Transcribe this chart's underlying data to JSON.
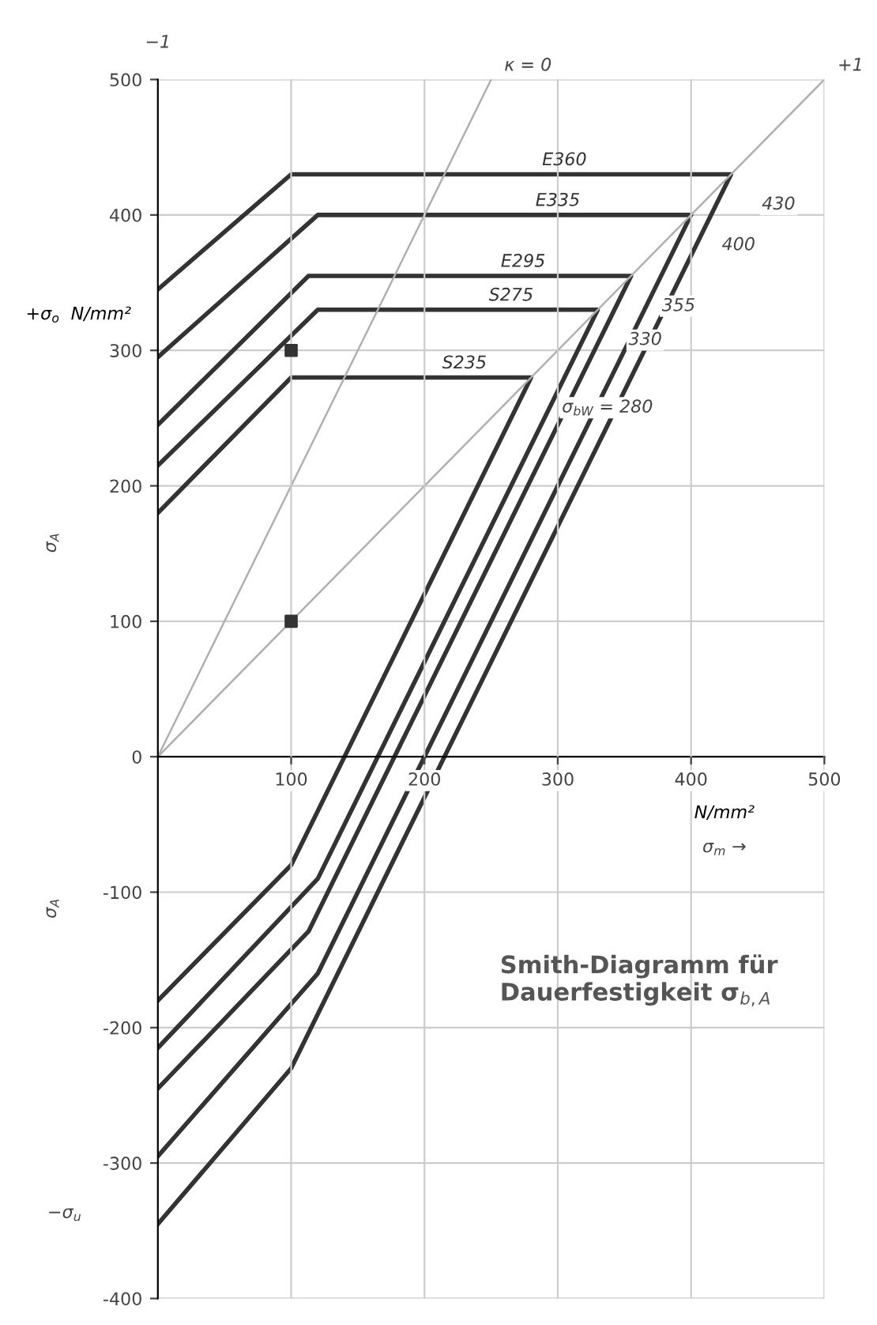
{
  "chart_data": {
    "type": "line",
    "title": "Smith-Diagramm für Dauerfestigkeit σ$_{b,A}$",
    "xlabel": "N/mm²",
    "ylabel": "+σ$_{o}$  N/mm²",
    "xlim": [
      0,
      500
    ],
    "xticks": [
      100,
      200,
      300,
      400,
      500
    ],
    "ylim": [
      -400,
      500
    ],
    "yticks": [
      -400,
      -300,
      -200,
      -100,
      0,
      100,
      200,
      300,
      400,
      500
    ],
    "grid": true,
    "legend": false,
    "line_style": "solid",
    "series": [
      {
        "name": "E360",
        "color": "#333333",
        "x": [
          0,
          100,
          430,
          100,
          0
        ],
        "values": [
          345,
          430,
          430,
          -230,
          -345
        ]
      },
      {
        "name": "E335",
        "color": "#333333",
        "x": [
          0,
          120,
          400,
          120,
          0
        ],
        "values": [
          295,
          400,
          400,
          -160,
          -295
        ]
      },
      {
        "name": "E295",
        "color": "#333333",
        "x": [
          0,
          113,
          355,
          113,
          0
        ],
        "values": [
          245,
          355,
          355,
          -129,
          -245
        ]
      },
      {
        "name": "S275",
        "color": "#333333",
        "x": [
          0,
          120,
          330,
          120,
          0
        ],
        "values": [
          215,
          330,
          330,
          -90,
          -215
        ]
      },
      {
        "name": "S235",
        "color": "#333333",
        "x": [
          0,
          100,
          280,
          100,
          0
        ],
        "values": [
          180,
          280,
          280,
          -80,
          -180
        ]
      },
      {
        "color": "#b0b0b0",
        "x": [
          0,
          500
        ],
        "values": [
          0,
          500
        ]
      },
      {
        "color": "#b0b0b0",
        "x": [
          0,
          250
        ],
        "values": [
          0,
          500
        ]
      },
      {
        "type": "scatter",
        "marker": "square",
        "color": "#333333",
        "x": [
          100,
          100
        ],
        "values": [
          100,
          300
        ]
      }
    ],
    "annotations": [
      {
        "text": "+1",
        "x": 500,
        "y": 500
      },
      "−1",
      {
        "text": "κ = 0",
        "x": 250,
        "y": 500
      },
      {
        "text": "430",
        "x": 430,
        "y": 430
      },
      {
        "text": "400",
        "x": 400,
        "y": 400
      },
      {
        "text": "355",
        "x": 355,
        "y": 355
      },
      {
        "text": "330",
        "x": 330,
        "y": 330
      },
      {
        "text": "σ$_{bW}$ = 280",
        "x": 280,
        "y": 280
      },
      "σ$_{m}$ →",
      "−σ$_{u}$",
      "σ$_{A}$",
      "σ$_{A}$"
    ]
  }
}
